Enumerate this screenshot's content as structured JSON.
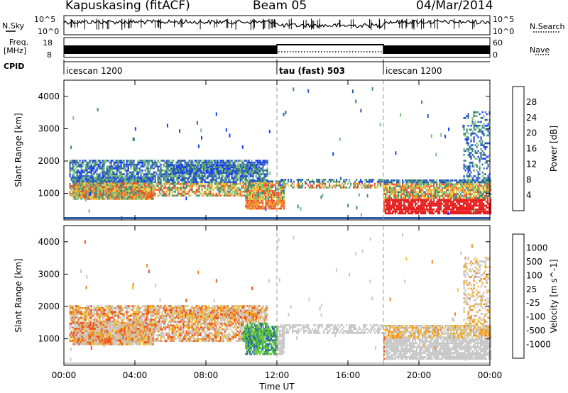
{
  "header": {
    "station": "Kapuskasing (fitACF)",
    "beam": "Beam 05",
    "date": "04/Mar/2014"
  },
  "labels": {
    "nsky": "N.Sky",
    "freq_line1": "Freq.",
    "freq_line2": "[MHz]",
    "cpid": "CPID",
    "nsearch": "N.Search",
    "nave": "Nave",
    "nsky_ticks": [
      "10^5",
      "10^0"
    ],
    "nsearch_ticks": [
      "10^5",
      "10^0"
    ],
    "freq_ticks": [
      "18",
      "8"
    ],
    "nave_ticks": [
      "60",
      "0"
    ]
  },
  "cpid_segments": [
    {
      "label": "icescan 1200",
      "start_h": 0,
      "end_h": 12
    },
    {
      "label": "tau (fast) 503",
      "start_h": 12,
      "end_h": 18
    },
    {
      "label": "icescan 1200",
      "start_h": 18,
      "end_h": 24
    }
  ],
  "chart_data": [
    {
      "type": "heatmap",
      "title": "Power",
      "xlabel": "Time UT",
      "ylabel": "Slant Range [km]",
      "colorbar_label": "Power [dB]",
      "x_range_h": [
        0,
        24
      ],
      "xticks": [
        "00:00",
        "04:00",
        "08:00",
        "12:00",
        "16:00",
        "20:00",
        "00:00"
      ],
      "ylim": [
        180,
        4500
      ],
      "yticks": [
        1000,
        2000,
        3000,
        4000
      ],
      "colorbar_ticks": [
        "4",
        "8",
        "12",
        "16",
        "20",
        "24",
        "28"
      ],
      "colorbar_colors": [
        "#1a3cff",
        "#2d5fa8",
        "#3f8a78",
        "#7bc07b",
        "#f0d040",
        "#f09a2a",
        "#f05030",
        "#e62020"
      ]
    },
    {
      "type": "heatmap",
      "title": "Velocity",
      "xlabel": "Time UT",
      "ylabel": "Slant Range [km]",
      "colorbar_label": "Velocity [m s^-1]",
      "x_range_h": [
        0,
        24
      ],
      "xticks": [
        "00:00",
        "04:00",
        "08:00",
        "12:00",
        "16:00",
        "20:00",
        "00:00"
      ],
      "ylim": [
        180,
        4500
      ],
      "yticks": [
        1000,
        2000,
        3000,
        4000
      ],
      "colorbar_ticks": [
        "1000",
        "500",
        "100",
        "25",
        "-25",
        "-100",
        "-500",
        "-1000"
      ],
      "colorbar_colors": [
        "#2a2ad8",
        "#2a6aa0",
        "#3a9a6a",
        "#66cc33",
        "#c8c8c8",
        "#f0c030",
        "#f08a20",
        "#f05020",
        "#e62020"
      ]
    }
  ],
  "footer": {
    "xlabel": "Time UT"
  },
  "colors": {
    "frame": "#000000",
    "gray": "#c8c8c8",
    "divider": "#9a9a9a"
  }
}
